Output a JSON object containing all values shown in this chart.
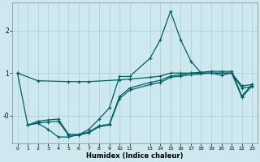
{
  "xlabel": "Humidex (Indice chaleur)",
  "background_color": "#cde8ee",
  "line_color": "#006060",
  "grid_color": "#aaccd4",
  "yticks": [
    0.0,
    1.0,
    2.0
  ],
  "ytick_labels": [
    "-0",
    "1",
    "2"
  ],
  "ylim": [
    -0.65,
    2.65
  ],
  "xlim": [
    -0.5,
    23.5
  ],
  "line1_x": [
    0,
    1,
    2,
    3,
    4,
    5,
    6,
    7,
    8,
    9,
    10,
    11,
    13,
    14,
    15,
    16,
    17,
    18,
    19,
    20,
    21,
    22,
    23
  ],
  "line1_y": [
    1.0,
    -0.22,
    -0.18,
    -0.32,
    -0.5,
    -0.5,
    -0.45,
    -0.32,
    -0.08,
    0.18,
    0.92,
    0.92,
    1.35,
    1.78,
    2.45,
    1.78,
    1.28,
    1.0,
    1.0,
    1.0,
    1.0,
    0.65,
    0.68
  ],
  "line2_x": [
    0,
    2,
    5,
    6,
    7,
    10,
    11,
    13,
    14,
    15,
    16,
    17,
    18,
    19,
    20,
    21,
    22,
    23
  ],
  "line2_y": [
    1.0,
    0.82,
    0.8,
    0.8,
    0.8,
    0.84,
    0.86,
    0.9,
    0.93,
    1.0,
    1.0,
    1.0,
    1.0,
    1.0,
    0.95,
    1.0,
    0.7,
    0.73
  ],
  "line3_x": [
    1,
    2,
    3,
    4,
    5,
    6,
    7,
    8,
    9,
    10,
    11,
    13,
    14,
    15,
    16,
    17,
    18,
    19,
    20,
    21,
    22,
    23
  ],
  "line3_y": [
    -0.22,
    -0.17,
    -0.15,
    -0.13,
    -0.46,
    -0.46,
    -0.4,
    -0.26,
    -0.22,
    0.4,
    0.6,
    0.73,
    0.78,
    0.9,
    0.93,
    0.96,
    0.98,
    1.0,
    1.0,
    1.0,
    0.43,
    0.7
  ],
  "line4_x": [
    1,
    2,
    3,
    4,
    5,
    6,
    7,
    8,
    9,
    10,
    11,
    13,
    14,
    15,
    16,
    17,
    18,
    19,
    20,
    21,
    22,
    23
  ],
  "line4_y": [
    -0.22,
    -0.13,
    -0.1,
    -0.08,
    -0.44,
    -0.44,
    -0.38,
    -0.24,
    -0.2,
    0.45,
    0.65,
    0.78,
    0.83,
    0.93,
    0.96,
    1.0,
    1.02,
    1.04,
    1.04,
    1.04,
    0.46,
    0.74
  ]
}
